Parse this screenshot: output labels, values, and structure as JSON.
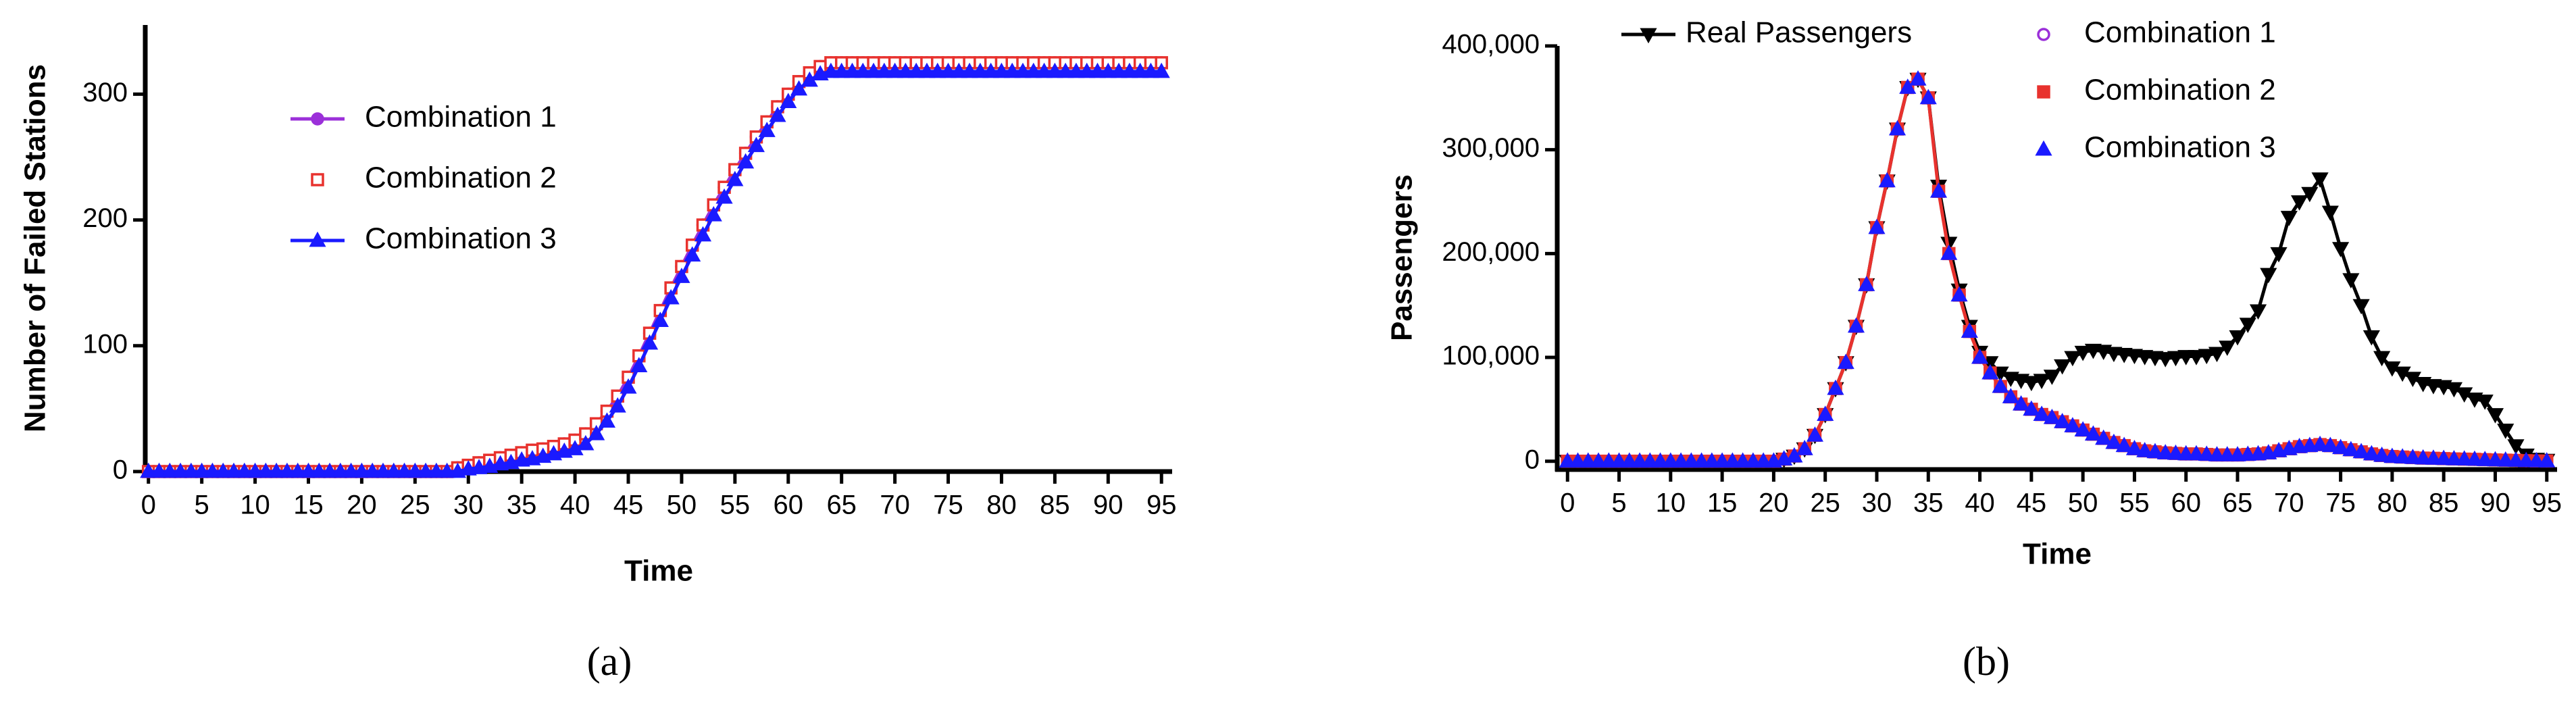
{
  "chart_data": [
    {
      "type": "line",
      "caption": "(a)",
      "xlabel": "Time",
      "ylabel": "Number of Failed Stations",
      "xlim": [
        -0.3,
        96
      ],
      "ylim": [
        0,
        355
      ],
      "xticks": [
        0,
        5,
        10,
        15,
        20,
        25,
        30,
        35,
        40,
        45,
        50,
        55,
        60,
        65,
        70,
        75,
        80,
        85,
        90,
        95
      ],
      "yticks": [
        0,
        100,
        200,
        300
      ],
      "x": [
        0,
        1,
        2,
        3,
        4,
        5,
        6,
        7,
        8,
        9,
        10,
        11,
        12,
        13,
        14,
        15,
        16,
        17,
        18,
        19,
        20,
        21,
        22,
        23,
        24,
        25,
        26,
        27,
        28,
        29,
        30,
        31,
        32,
        33,
        34,
        35,
        36,
        37,
        38,
        39,
        40,
        41,
        42,
        43,
        44,
        45,
        46,
        47,
        48,
        49,
        50,
        51,
        52,
        53,
        54,
        55,
        56,
        57,
        58,
        59,
        60,
        61,
        62,
        63,
        64,
        65,
        66,
        67,
        68,
        69,
        70,
        71,
        72,
        73,
        74,
        75,
        76,
        77,
        78,
        79,
        80,
        81,
        82,
        83,
        84,
        85,
        86,
        87,
        88,
        89,
        90,
        91,
        92,
        93,
        94,
        95
      ],
      "series": [
        {
          "name": "Combination 1",
          "color": "#9b30d9",
          "marker": "circle",
          "filled": true,
          "line": true,
          "values": [
            0,
            0,
            0,
            0,
            0,
            0,
            0,
            0,
            0,
            0,
            0,
            0,
            0,
            0,
            0,
            0,
            0,
            0,
            0,
            0,
            0,
            0,
            0,
            0,
            0,
            0,
            0,
            0,
            0,
            3,
            5,
            7,
            9,
            11,
            13,
            15,
            17,
            18,
            20,
            22,
            25,
            30,
            38,
            48,
            60,
            75,
            92,
            110,
            128,
            146,
            163,
            180,
            196,
            212,
            226,
            240,
            253,
            266,
            278,
            290,
            300,
            310,
            317,
            322,
            325,
            325,
            325,
            325,
            325,
            325,
            325,
            325,
            325,
            325,
            325,
            325,
            325,
            325,
            325,
            325,
            325,
            325,
            325,
            325,
            325,
            325,
            325,
            325,
            325,
            325,
            325,
            325,
            325,
            325,
            325,
            325
          ]
        },
        {
          "name": "Combination 2",
          "color": "#e8322e",
          "marker": "square",
          "filled": false,
          "line": false,
          "values": [
            0,
            0,
            0,
            0,
            0,
            0,
            0,
            0,
            0,
            0,
            0,
            0,
            0,
            0,
            0,
            0,
            0,
            0,
            0,
            0,
            0,
            0,
            0,
            0,
            0,
            0,
            0,
            0,
            0,
            3,
            5,
            7,
            9,
            11,
            13,
            15,
            17,
            18,
            20,
            22,
            25,
            30,
            38,
            48,
            60,
            75,
            92,
            110,
            128,
            146,
            163,
            180,
            196,
            212,
            226,
            240,
            253,
            266,
            278,
            290,
            300,
            310,
            317,
            322,
            325,
            325,
            325,
            325,
            325,
            325,
            325,
            325,
            325,
            325,
            325,
            325,
            325,
            325,
            325,
            325,
            325,
            325,
            325,
            325,
            325,
            325,
            325,
            325,
            325,
            325,
            325,
            325,
            325,
            325,
            325,
            325
          ]
        },
        {
          "name": "Combination 3",
          "color": "#1a1aff",
          "marker": "triangle",
          "filled": true,
          "line": true,
          "values": [
            0,
            0,
            0,
            0,
            0,
            0,
            0,
            0,
            0,
            0,
            0,
            0,
            0,
            0,
            0,
            0,
            0,
            0,
            0,
            0,
            0,
            0,
            0,
            0,
            0,
            0,
            0,
            0,
            0,
            0,
            2,
            3,
            4,
            6,
            7,
            9,
            10,
            12,
            14,
            16,
            18,
            22,
            30,
            40,
            52,
            67,
            84,
            102,
            120,
            138,
            155,
            172,
            188,
            204,
            218,
            232,
            246,
            259,
            271,
            283,
            294,
            304,
            311,
            316,
            318,
            318,
            318,
            318,
            318,
            318,
            318,
            318,
            318,
            318,
            318,
            318,
            318,
            318,
            318,
            318,
            318,
            318,
            318,
            318,
            318,
            318,
            318,
            318,
            318,
            318,
            318,
            318,
            318,
            318,
            318,
            318
          ]
        }
      ]
    },
    {
      "type": "line",
      "caption": "(b)",
      "xlabel": "Time",
      "ylabel": "Passengers",
      "xlim": [
        -1,
        96
      ],
      "ylim": [
        -8000,
        400000
      ],
      "xticks": [
        0,
        5,
        10,
        15,
        20,
        25,
        30,
        35,
        40,
        45,
        50,
        55,
        60,
        65,
        70,
        75,
        80,
        85,
        90,
        95
      ],
      "yticks": [
        0,
        {
          "value": 100000,
          "label": "100,000"
        },
        {
          "value": 200000,
          "label": "200,000"
        },
        {
          "value": 300000,
          "label": "300,000"
        },
        {
          "value": 400000,
          "label": "400,000"
        }
      ],
      "x": [
        0,
        1,
        2,
        3,
        4,
        5,
        6,
        7,
        8,
        9,
        10,
        11,
        12,
        13,
        14,
        15,
        16,
        17,
        18,
        19,
        20,
        21,
        22,
        23,
        24,
        25,
        26,
        27,
        28,
        29,
        30,
        31,
        32,
        33,
        34,
        35,
        36,
        37,
        38,
        39,
        40,
        41,
        42,
        43,
        44,
        45,
        46,
        47,
        48,
        49,
        50,
        51,
        52,
        53,
        54,
        55,
        56,
        57,
        58,
        59,
        60,
        61,
        62,
        63,
        64,
        65,
        66,
        67,
        68,
        69,
        70,
        71,
        72,
        73,
        74,
        75,
        76,
        77,
        78,
        79,
        80,
        81,
        82,
        83,
        84,
        85,
        86,
        87,
        88,
        89,
        90,
        91,
        92,
        93,
        94,
        95
      ],
      "series": [
        {
          "name": "Real Passengers",
          "color": "#000000",
          "marker": "triangle-down",
          "filled": true,
          "line": true,
          "values": [
            0,
            0,
            0,
            0,
            0,
            0,
            0,
            0,
            0,
            0,
            0,
            0,
            0,
            0,
            0,
            0,
            0,
            0,
            0,
            0,
            0,
            2000,
            5000,
            12000,
            25000,
            45000,
            70000,
            95000,
            130000,
            170000,
            225000,
            270000,
            320000,
            360000,
            368000,
            350000,
            265000,
            210000,
            165000,
            130000,
            105000,
            95000,
            85000,
            80000,
            78000,
            76000,
            78000,
            82000,
            92000,
            100000,
            105000,
            107000,
            106000,
            104000,
            103000,
            102000,
            101000,
            100000,
            99000,
            100000,
            101000,
            101000,
            102000,
            104000,
            110000,
            120000,
            132000,
            145000,
            180000,
            200000,
            235000,
            250000,
            258000,
            272000,
            240000,
            205000,
            175000,
            150000,
            120000,
            100000,
            90000,
            85000,
            80000,
            75000,
            73000,
            72000,
            70000,
            65000,
            60000,
            58000,
            45000,
            30000,
            15000,
            6000,
            2000,
            1000
          ]
        },
        {
          "name": "Combination 1",
          "color": "#9b30d9",
          "marker": "circle",
          "filled": false,
          "line": false,
          "values": [
            0,
            0,
            0,
            0,
            0,
            0,
            0,
            0,
            0,
            0,
            0,
            0,
            0,
            0,
            0,
            0,
            0,
            0,
            0,
            0,
            0,
            2000,
            5000,
            12000,
            25000,
            45000,
            70000,
            95000,
            130000,
            170000,
            225000,
            270000,
            320000,
            360000,
            368000,
            350000,
            260000,
            200000,
            160000,
            125000,
            100000,
            85000,
            72000,
            62000,
            55000,
            50000,
            45000,
            42000,
            38000,
            34000,
            30000,
            26000,
            22000,
            18000,
            15000,
            12000,
            10000,
            9000,
            8000,
            7500,
            7000,
            7000,
            6500,
            6000,
            6000,
            6000,
            6500,
            7000,
            8000,
            10000,
            12000,
            14000,
            15000,
            16000,
            15000,
            13000,
            11000,
            9000,
            7000,
            5500,
            4500,
            4000,
            3500,
            3000,
            2800,
            2500,
            2200,
            2000,
            1800,
            1500,
            1200,
            1000,
            800,
            500,
            300,
            200
          ]
        },
        {
          "name": "Combination 2",
          "color": "#e8322e",
          "marker": "square",
          "filled": true,
          "line": true,
          "values": [
            0,
            0,
            0,
            0,
            0,
            0,
            0,
            0,
            0,
            0,
            0,
            0,
            0,
            0,
            0,
            0,
            0,
            0,
            0,
            0,
            0,
            2000,
            5000,
            12000,
            25000,
            45000,
            70000,
            95000,
            130000,
            170000,
            225000,
            270000,
            320000,
            360000,
            368000,
            350000,
            260000,
            200000,
            160000,
            125000,
            100000,
            85000,
            72000,
            62000,
            55000,
            50000,
            45000,
            42000,
            38000,
            34000,
            30000,
            26000,
            22000,
            18000,
            15000,
            12000,
            10000,
            9000,
            8000,
            7500,
            7000,
            7000,
            6500,
            6000,
            6000,
            6000,
            6500,
            7000,
            8000,
            10000,
            12000,
            14000,
            15000,
            16000,
            15000,
            13000,
            11000,
            9000,
            7000,
            5500,
            4500,
            4000,
            3500,
            3000,
            2800,
            2500,
            2200,
            2000,
            1800,
            1500,
            1200,
            1000,
            800,
            500,
            300,
            200
          ]
        },
        {
          "name": "Combination 3",
          "color": "#1a1aff",
          "marker": "triangle",
          "filled": true,
          "line": false,
          "values": [
            0,
            0,
            0,
            0,
            0,
            0,
            0,
            0,
            0,
            0,
            0,
            0,
            0,
            0,
            0,
            0,
            0,
            0,
            0,
            0,
            0,
            2000,
            5000,
            12000,
            25000,
            45000,
            70000,
            95000,
            130000,
            170000,
            225000,
            270000,
            320000,
            360000,
            368000,
            350000,
            260000,
            200000,
            160000,
            125000,
            100000,
            85000,
            72000,
            62000,
            55000,
            50000,
            45000,
            42000,
            38000,
            34000,
            30000,
            26000,
            22000,
            18000,
            15000,
            12000,
            10000,
            9000,
            8000,
            7500,
            7000,
            7000,
            6500,
            6000,
            6000,
            6000,
            6500,
            7000,
            8000,
            10000,
            12000,
            14000,
            15000,
            16000,
            15000,
            13000,
            11000,
            9000,
            7000,
            5500,
            4500,
            4000,
            3500,
            3000,
            2800,
            2500,
            2200,
            2000,
            1800,
            1500,
            1200,
            1000,
            800,
            500,
            300,
            200
          ]
        }
      ]
    }
  ]
}
